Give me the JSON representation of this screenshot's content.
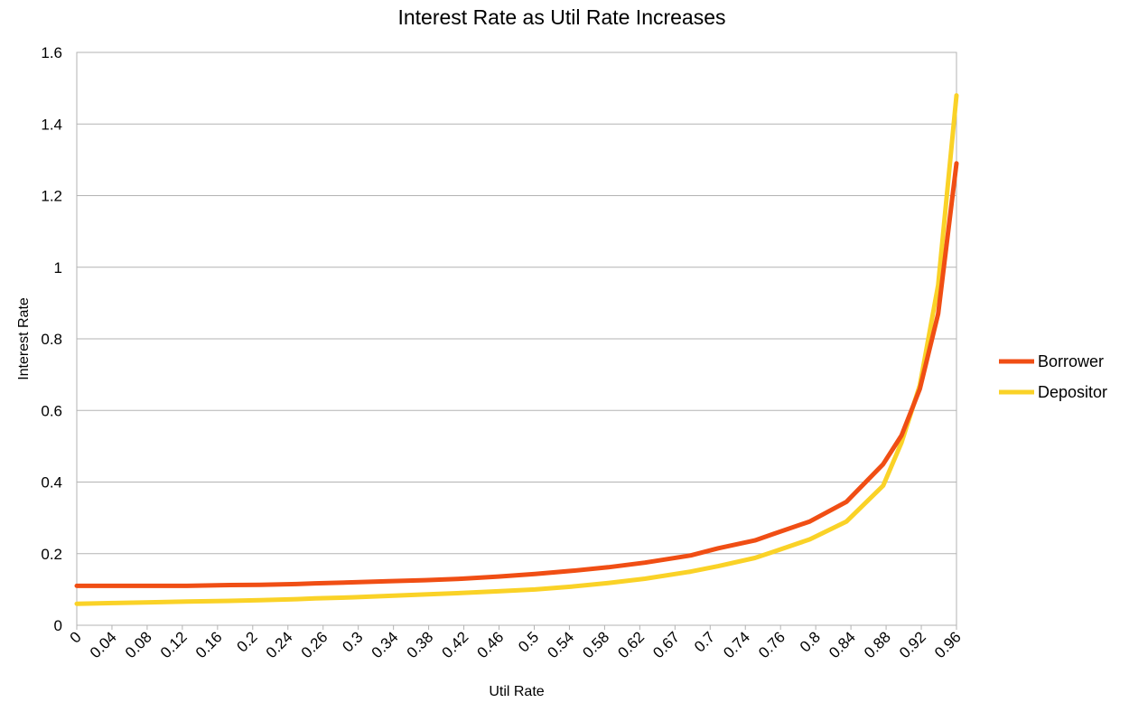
{
  "chart_data": {
    "type": "line",
    "title": "Interest Rate as Util Rate Increases",
    "xlabel": "Util Rate",
    "ylabel": "Interest Rate",
    "ylim": [
      0,
      1.6
    ],
    "yticks": [
      "0",
      "0.2",
      "0.4",
      "0.6",
      "0.8",
      "1",
      "1.2",
      "1.4",
      "1.6"
    ],
    "x_tick_labels": [
      "0",
      "0.04",
      "0.08",
      "0.12",
      "0.16",
      "0.2",
      "0.24",
      "0.26",
      "0.3",
      "0.34",
      "0.38",
      "0.42",
      "0.46",
      "0.5",
      "0.54",
      "0.58",
      "0.62",
      "0.67",
      "0.7",
      "0.74",
      "0.76",
      "0.8",
      "0.84",
      "0.88",
      "0.92",
      "0.96"
    ],
    "grid": true,
    "legend_position": "right",
    "series": [
      {
        "name": "Borrower",
        "color": "#F04E14",
        "points": [
          [
            0,
            0.11
          ],
          [
            0.04,
            0.11
          ],
          [
            0.08,
            0.11
          ],
          [
            0.12,
            0.11
          ],
          [
            0.16,
            0.112
          ],
          [
            0.2,
            0.113
          ],
          [
            0.24,
            0.115
          ],
          [
            0.26,
            0.117
          ],
          [
            0.3,
            0.12
          ],
          [
            0.34,
            0.123
          ],
          [
            0.38,
            0.126
          ],
          [
            0.42,
            0.13
          ],
          [
            0.46,
            0.136
          ],
          [
            0.5,
            0.143
          ],
          [
            0.54,
            0.152
          ],
          [
            0.58,
            0.162
          ],
          [
            0.62,
            0.175
          ],
          [
            0.67,
            0.195
          ],
          [
            0.7,
            0.215
          ],
          [
            0.74,
            0.237
          ],
          [
            0.76,
            0.255
          ],
          [
            0.8,
            0.29
          ],
          [
            0.84,
            0.345
          ],
          [
            0.88,
            0.45
          ],
          [
            0.9,
            0.53
          ],
          [
            0.92,
            0.66
          ],
          [
            0.94,
            0.87
          ],
          [
            0.96,
            1.29
          ]
        ]
      },
      {
        "name": "Depositor",
        "color": "#FAD227",
        "points": [
          [
            0,
            0.06
          ],
          [
            0.04,
            0.062
          ],
          [
            0.08,
            0.064
          ],
          [
            0.12,
            0.066
          ],
          [
            0.16,
            0.068
          ],
          [
            0.2,
            0.07
          ],
          [
            0.24,
            0.073
          ],
          [
            0.26,
            0.075
          ],
          [
            0.3,
            0.078
          ],
          [
            0.34,
            0.082
          ],
          [
            0.38,
            0.086
          ],
          [
            0.42,
            0.09
          ],
          [
            0.46,
            0.095
          ],
          [
            0.5,
            0.1
          ],
          [
            0.54,
            0.108
          ],
          [
            0.58,
            0.118
          ],
          [
            0.62,
            0.13
          ],
          [
            0.67,
            0.15
          ],
          [
            0.7,
            0.165
          ],
          [
            0.74,
            0.188
          ],
          [
            0.76,
            0.205
          ],
          [
            0.8,
            0.24
          ],
          [
            0.84,
            0.29
          ],
          [
            0.88,
            0.39
          ],
          [
            0.9,
            0.51
          ],
          [
            0.92,
            0.67
          ],
          [
            0.94,
            0.95
          ],
          [
            0.96,
            1.48
          ]
        ]
      }
    ]
  }
}
